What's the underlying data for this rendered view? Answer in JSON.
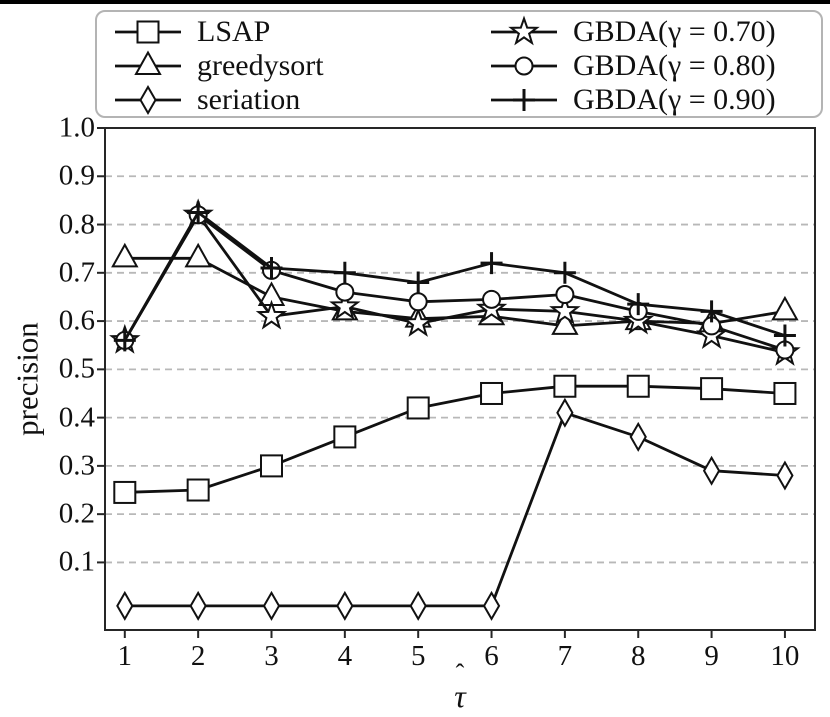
{
  "figure": {
    "y_axis_label": "precision",
    "x_axis_label": "τ̂",
    "x_axis_label_tau": "τ",
    "x_axis_label_hat": "ˆ"
  },
  "colors": {
    "line": "#111111",
    "marker_fill": "#ffffff",
    "spine": "#262626",
    "grid": "#b8b8b8",
    "legend_border": "#b4b4b4",
    "top_rule": "#000000"
  },
  "chart_data": {
    "type": "line",
    "title": "",
    "xlabel": "τ̂",
    "ylabel": "precision",
    "x": [
      1,
      2,
      3,
      4,
      5,
      6,
      7,
      8,
      9,
      10
    ],
    "xlim": [
      0.73,
      10.41
    ],
    "ylim": [
      -0.04,
      1.0
    ],
    "x_ticks": {
      "values": [
        1,
        2,
        3,
        4,
        5,
        6,
        7,
        8,
        9,
        10
      ],
      "labels": [
        "1",
        "2",
        "3",
        "4",
        "5",
        "6",
        "7",
        "8",
        "9",
        "10"
      ]
    },
    "y_ticks": {
      "values": [
        1.0,
        0.9,
        0.8,
        0.7,
        0.6,
        0.5,
        0.4,
        0.3,
        0.2,
        0.1
      ],
      "labels": [
        "1.0",
        "0.9",
        "0.8",
        "0.7",
        "0.6",
        "0.5",
        "0.4",
        "0.3",
        "0.2",
        "0.1"
      ]
    },
    "grid": "horizontal dashed gray at each y tick",
    "legend_position": "top, outside plot, two columns",
    "series": [
      {
        "name": "LSAP",
        "marker": "square",
        "values": [
          0.245,
          0.25,
          0.3,
          0.36,
          0.42,
          0.45,
          0.465,
          0.465,
          0.46,
          0.45
        ]
      },
      {
        "name": "greedysort",
        "marker": "triangle",
        "values": [
          0.73,
          0.73,
          0.65,
          0.62,
          0.605,
          0.61,
          0.59,
          0.6,
          0.595,
          0.62
        ]
      },
      {
        "name": "seriation",
        "marker": "diamond",
        "values": [
          0.01,
          0.01,
          0.01,
          0.01,
          0.01,
          0.01,
          0.41,
          0.36,
          0.29,
          0.28
        ]
      },
      {
        "name": "GBDA(γ = 0.70)",
        "marker": "star",
        "values": [
          0.56,
          0.82,
          0.61,
          0.63,
          0.595,
          0.625,
          0.62,
          0.6,
          0.57,
          0.535
        ]
      },
      {
        "name": "GBDA(γ = 0.80)",
        "marker": "circle",
        "values": [
          0.56,
          0.82,
          0.705,
          0.66,
          0.64,
          0.645,
          0.655,
          0.62,
          0.59,
          0.54
        ]
      },
      {
        "name": "GBDA(γ = 0.90)",
        "marker": "plus",
        "values": [
          0.56,
          0.825,
          0.71,
          0.7,
          0.68,
          0.72,
          0.7,
          0.635,
          0.62,
          0.57
        ]
      }
    ]
  }
}
